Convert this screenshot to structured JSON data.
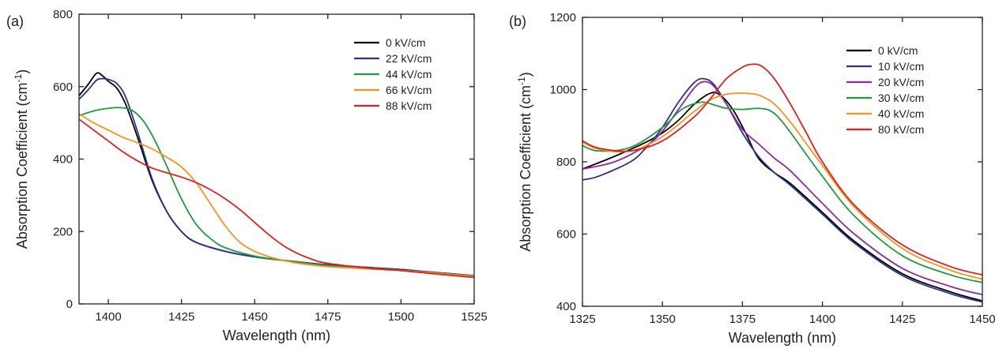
{
  "chart_data": [
    {
      "type": "line",
      "panel_label": "(a)",
      "xlabel": "Wavelength (nm)",
      "ylabel_main": "Absorption Coefficient (cm",
      "ylabel_sup": "-1",
      "ylabel_end": ")",
      "xlim": [
        1390,
        1525
      ],
      "ylim": [
        0,
        800
      ],
      "xticks": [
        1400,
        1425,
        1450,
        1475,
        1500,
        1525
      ],
      "yticks": [
        0,
        200,
        400,
        600,
        800
      ],
      "legend_position": "top-right",
      "series": [
        {
          "name": "0 kV/cm",
          "color": "#000000",
          "x": [
            1390,
            1393,
            1396,
            1398,
            1400,
            1403,
            1406,
            1410,
            1415,
            1420,
            1425,
            1430,
            1440,
            1450,
            1460,
            1475,
            1490,
            1500,
            1510,
            1525
          ],
          "y": [
            575,
            605,
            637,
            630,
            615,
            595,
            550,
            460,
            340,
            255,
            200,
            170,
            145,
            130,
            120,
            108,
            100,
            95,
            88,
            78
          ]
        },
        {
          "name": "22 kV/cm",
          "color": "#2e3192",
          "x": [
            1390,
            1393,
            1396,
            1398,
            1400,
            1403,
            1406,
            1410,
            1415,
            1420,
            1425,
            1430,
            1440,
            1450,
            1460,
            1475,
            1490,
            1500,
            1510,
            1525
          ],
          "y": [
            565,
            590,
            618,
            622,
            620,
            608,
            570,
            475,
            345,
            255,
            200,
            170,
            145,
            130,
            120,
            108,
            100,
            95,
            88,
            78
          ]
        },
        {
          "name": "44 kV/cm",
          "color": "#1f9c3c",
          "x": [
            1390,
            1393,
            1396,
            1400,
            1404,
            1408,
            1412,
            1416,
            1420,
            1425,
            1430,
            1435,
            1440,
            1450,
            1460,
            1475,
            1490,
            1500,
            1510,
            1525
          ],
          "y": [
            520,
            528,
            535,
            540,
            542,
            535,
            505,
            450,
            380,
            290,
            220,
            180,
            155,
            132,
            120,
            106,
            98,
            93,
            87,
            77
          ]
        },
        {
          "name": "66 kV/cm",
          "color": "#f7941d",
          "x": [
            1390,
            1395,
            1400,
            1405,
            1410,
            1415,
            1420,
            1425,
            1430,
            1435,
            1440,
            1445,
            1450,
            1455,
            1460,
            1465,
            1475,
            1490,
            1500,
            1510,
            1525
          ],
          "y": [
            525,
            500,
            480,
            460,
            445,
            428,
            405,
            378,
            335,
            275,
            215,
            170,
            145,
            130,
            120,
            112,
            103,
            96,
            92,
            86,
            76
          ]
        },
        {
          "name": "88 kV/cm",
          "color": "#e02020",
          "x": [
            1390,
            1395,
            1400,
            1405,
            1410,
            1415,
            1420,
            1425,
            1430,
            1435,
            1440,
            1445,
            1450,
            1455,
            1460,
            1465,
            1470,
            1475,
            1490,
            1500,
            1510,
            1525
          ],
          "y": [
            510,
            480,
            450,
            420,
            395,
            375,
            362,
            350,
            335,
            315,
            290,
            260,
            225,
            190,
            160,
            138,
            122,
            112,
            98,
            92,
            84,
            73
          ]
        }
      ]
    },
    {
      "type": "line",
      "panel_label": "(b)",
      "xlabel": "Wavelength (nm)",
      "ylabel_main": "Absorption Coefficient (cm",
      "ylabel_sup": "-1",
      "ylabel_end": ")",
      "xlim": [
        1325,
        1450
      ],
      "ylim": [
        400,
        1200
      ],
      "xticks": [
        1325,
        1350,
        1375,
        1400,
        1425,
        1450
      ],
      "yticks": [
        400,
        600,
        800,
        1000,
        1200
      ],
      "legend_position": "top-right",
      "series": [
        {
          "name": "0 kV/cm",
          "color": "#000000",
          "x": [
            1325,
            1335,
            1345,
            1350,
            1355,
            1360,
            1365,
            1368,
            1372,
            1376,
            1380,
            1385,
            1390,
            1400,
            1410,
            1425,
            1440,
            1450
          ],
          "y": [
            780,
            815,
            855,
            880,
            915,
            960,
            990,
            985,
            945,
            880,
            810,
            770,
            740,
            660,
            580,
            490,
            440,
            415
          ]
        },
        {
          "name": "10 kV/cm",
          "color": "#2e3192",
          "x": [
            1325,
            1330,
            1340,
            1345,
            1350,
            1355,
            1360,
            1363,
            1366,
            1370,
            1375,
            1380,
            1385,
            1390,
            1400,
            1410,
            1425,
            1440,
            1450
          ],
          "y": [
            750,
            760,
            800,
            840,
            895,
            965,
            1020,
            1030,
            1015,
            960,
            880,
            815,
            770,
            735,
            655,
            575,
            485,
            435,
            412
          ]
        },
        {
          "name": "20 kV/cm",
          "color": "#8e2a9c",
          "x": [
            1325,
            1335,
            1345,
            1350,
            1355,
            1360,
            1363,
            1366,
            1370,
            1375,
            1380,
            1385,
            1390,
            1400,
            1410,
            1425,
            1440,
            1450
          ],
          "y": [
            780,
            800,
            845,
            885,
            945,
            1005,
            1022,
            1010,
            960,
            890,
            850,
            810,
            775,
            685,
            600,
            505,
            455,
            432
          ]
        },
        {
          "name": "30 kV/cm",
          "color": "#1f9c3c",
          "x": [
            1325,
            1330,
            1340,
            1350,
            1356,
            1362,
            1366,
            1370,
            1375,
            1380,
            1384,
            1388,
            1395,
            1400,
            1410,
            1425,
            1440,
            1450
          ],
          "y": [
            845,
            830,
            840,
            895,
            945,
            965,
            958,
            948,
            945,
            948,
            940,
            905,
            820,
            760,
            650,
            540,
            487,
            466
          ]
        },
        {
          "name": "40 kV/cm",
          "color": "#f7941d",
          "x": [
            1325,
            1330,
            1340,
            1350,
            1360,
            1365,
            1370,
            1375,
            1380,
            1385,
            1390,
            1395,
            1400,
            1410,
            1425,
            1440,
            1450
          ],
          "y": [
            855,
            835,
            830,
            870,
            940,
            972,
            987,
            990,
            985,
            960,
            910,
            850,
            790,
            675,
            560,
            500,
            475
          ]
        },
        {
          "name": "80 kV/cm",
          "color": "#e02020",
          "x": [
            1325,
            1330,
            1340,
            1350,
            1360,
            1365,
            1370,
            1375,
            1378,
            1381,
            1385,
            1390,
            1395,
            1400,
            1410,
            1425,
            1440,
            1450
          ],
          "y": [
            858,
            838,
            830,
            858,
            925,
            975,
            1030,
            1062,
            1070,
            1065,
            1030,
            960,
            880,
            800,
            680,
            570,
            510,
            487
          ]
        }
      ]
    }
  ]
}
